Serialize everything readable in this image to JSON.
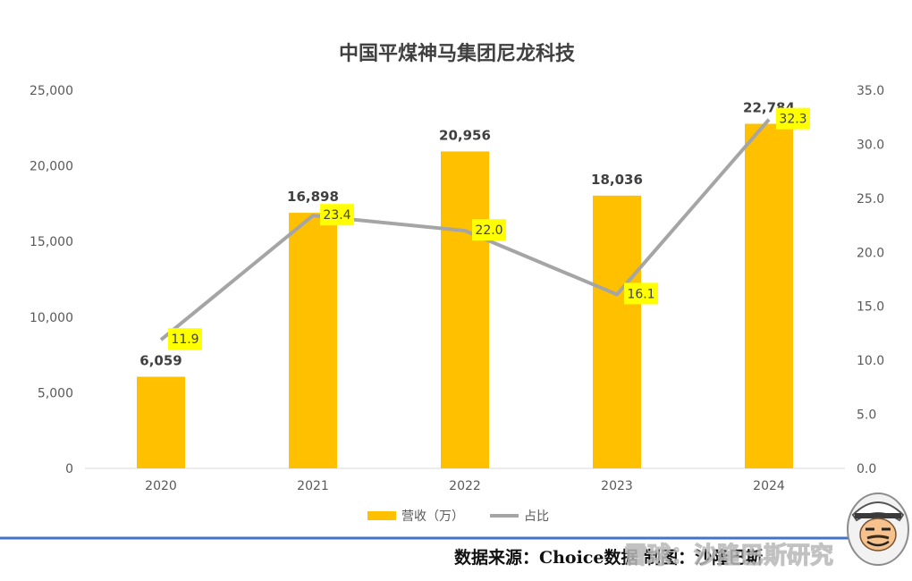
{
  "chart_data": {
    "type": "bar",
    "title": "中国平煤神马集团尼龙科技",
    "categories": [
      "2020",
      "2021",
      "2022",
      "2023",
      "2024"
    ],
    "series": [
      {
        "name": "营收（万）",
        "type": "bar",
        "axis": "left",
        "values": [
          6059,
          16898,
          20956,
          18036,
          22784
        ],
        "labels": [
          "6,059",
          "16,898",
          "20,956",
          "18,036",
          "22,784"
        ]
      },
      {
        "name": "占比",
        "type": "line",
        "axis": "right",
        "values": [
          11.9,
          23.4,
          22.0,
          16.1,
          32.3
        ],
        "labels": [
          "11.9",
          "23.4",
          "22.0",
          "16.1",
          "32.3"
        ]
      }
    ],
    "y_left": {
      "min": 0,
      "max": 25000,
      "ticks": [
        "0",
        "5,000",
        "10,000",
        "15,000",
        "20,000",
        "25,000"
      ]
    },
    "y_right": {
      "min": 0,
      "max": 35,
      "ticks": [
        "0.0",
        "5.0",
        "10.0",
        "15.0",
        "20.0",
        "25.0",
        "30.0",
        "35.0"
      ]
    },
    "grid": false,
    "legend_position": "bottom",
    "colors": {
      "bar": "#FFC000",
      "line": "#A5A5A5",
      "label_bg": "#FFFF00",
      "footer_rule": "#4472C4"
    }
  },
  "footer": {
    "source_text": "数据来源：Choice数据  制图：沙隆巴斯"
  },
  "watermark": {
    "text": "雪球：沙隆巴斯研究"
  }
}
